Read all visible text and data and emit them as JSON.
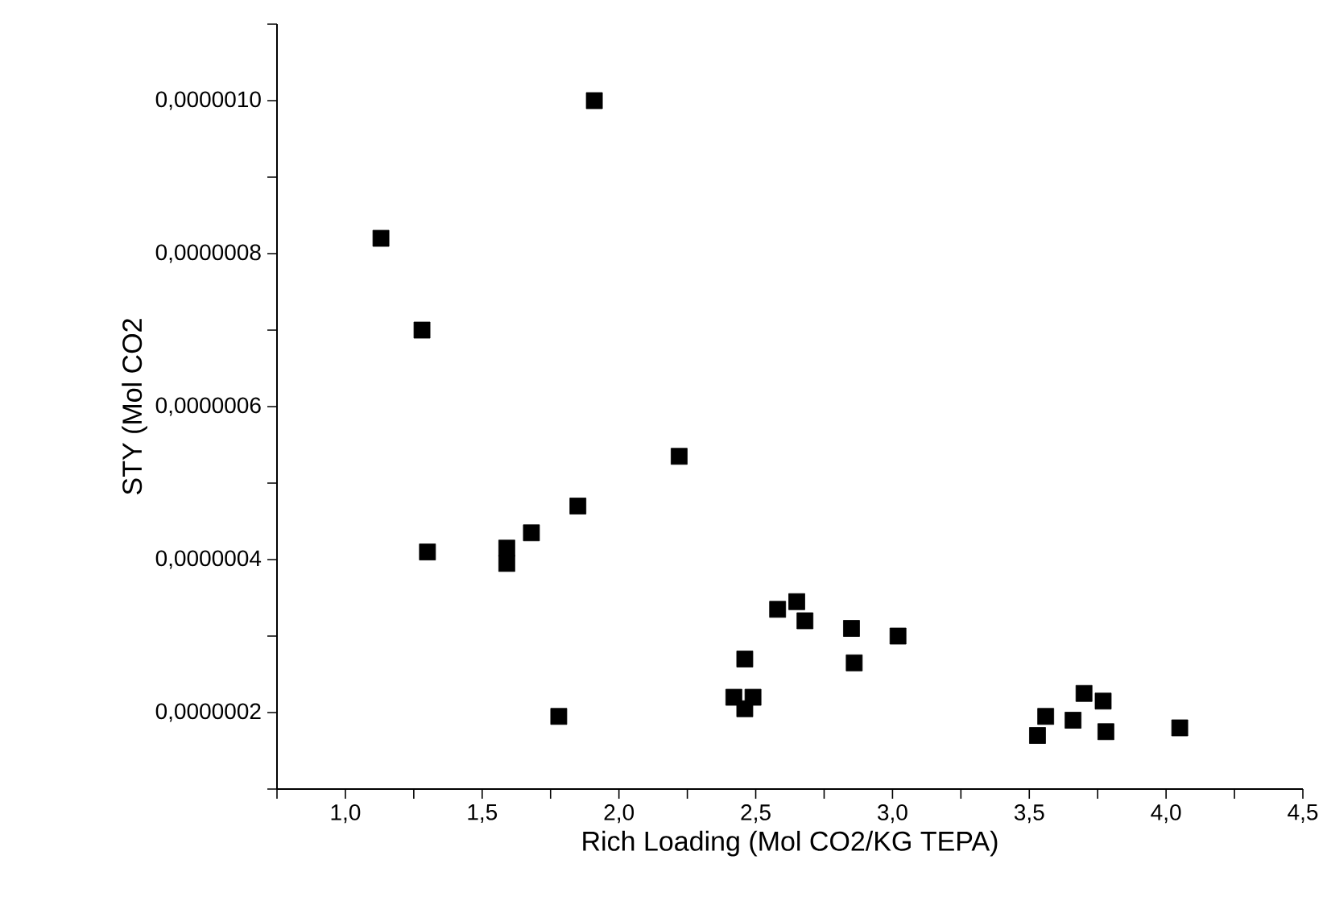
{
  "chart_data": {
    "type": "scatter",
    "xlabel": "Rich Loading (Mol CO2/KG TEPA)",
    "ylabel": "STY (Mol CO2",
    "x": [
      1.13,
      1.28,
      1.3,
      1.59,
      1.59,
      1.68,
      1.85,
      1.78,
      1.91,
      2.22,
      2.42,
      2.46,
      2.46,
      2.49,
      2.58,
      2.65,
      2.68,
      2.85,
      2.86,
      3.02,
      3.53,
      3.56,
      3.66,
      3.7,
      3.77,
      3.78,
      4.05
    ],
    "series": [
      {
        "color": "#000000",
        "values": [
          8.2e-07,
          7e-07,
          4.1e-07,
          4.15e-07,
          3.95e-07,
          4.35e-07,
          4.7e-07,
          1.95e-07,
          1e-06,
          5.35e-07,
          2.2e-07,
          2.7e-07,
          2.05e-07,
          2.2e-07,
          3.35e-07,
          3.45e-07,
          3.2e-07,
          3.1e-07,
          2.65e-07,
          3e-07,
          1.7e-07,
          1.95e-07,
          1.9e-07,
          2.25e-07,
          2.15e-07,
          1.75e-07,
          1.8e-07
        ]
      }
    ],
    "marker": "square",
    "grid": false,
    "xlim": [
      0.75,
      4.5
    ],
    "ylim": [
      1e-07,
      1.1e-06
    ],
    "xticks": [
      {
        "value": 0.75,
        "label": null
      },
      {
        "value": 1.0,
        "label": "1,0"
      },
      {
        "value": 1.25,
        "label": null
      },
      {
        "value": 1.5,
        "label": "1,5"
      },
      {
        "value": 1.75,
        "label": null
      },
      {
        "value": 2.0,
        "label": "2,0"
      },
      {
        "value": 2.25,
        "label": null
      },
      {
        "value": 2.5,
        "label": "2,5"
      },
      {
        "value": 2.75,
        "label": null
      },
      {
        "value": 3.0,
        "label": "3,0"
      },
      {
        "value": 3.25,
        "label": null
      },
      {
        "value": 3.5,
        "label": "3,5"
      },
      {
        "value": 3.75,
        "label": null
      },
      {
        "value": 4.0,
        "label": "4,0"
      },
      {
        "value": 4.25,
        "label": null
      },
      {
        "value": 4.5,
        "label": "4,5"
      }
    ],
    "yticks": [
      {
        "value": 1e-07,
        "label": null
      },
      {
        "value": 2e-07,
        "label": "0,0000002"
      },
      {
        "value": 3e-07,
        "label": null
      },
      {
        "value": 4e-07,
        "label": "0,0000004"
      },
      {
        "value": 5e-07,
        "label": null
      },
      {
        "value": 6e-07,
        "label": "0,0000006"
      },
      {
        "value": 7e-07,
        "label": null
      },
      {
        "value": 8e-07,
        "label": "0,0000008"
      },
      {
        "value": 9e-07,
        "label": null
      },
      {
        "value": 1e-06,
        "label": "0,0000010"
      },
      {
        "value": 1.1e-06,
        "label": null
      }
    ]
  }
}
